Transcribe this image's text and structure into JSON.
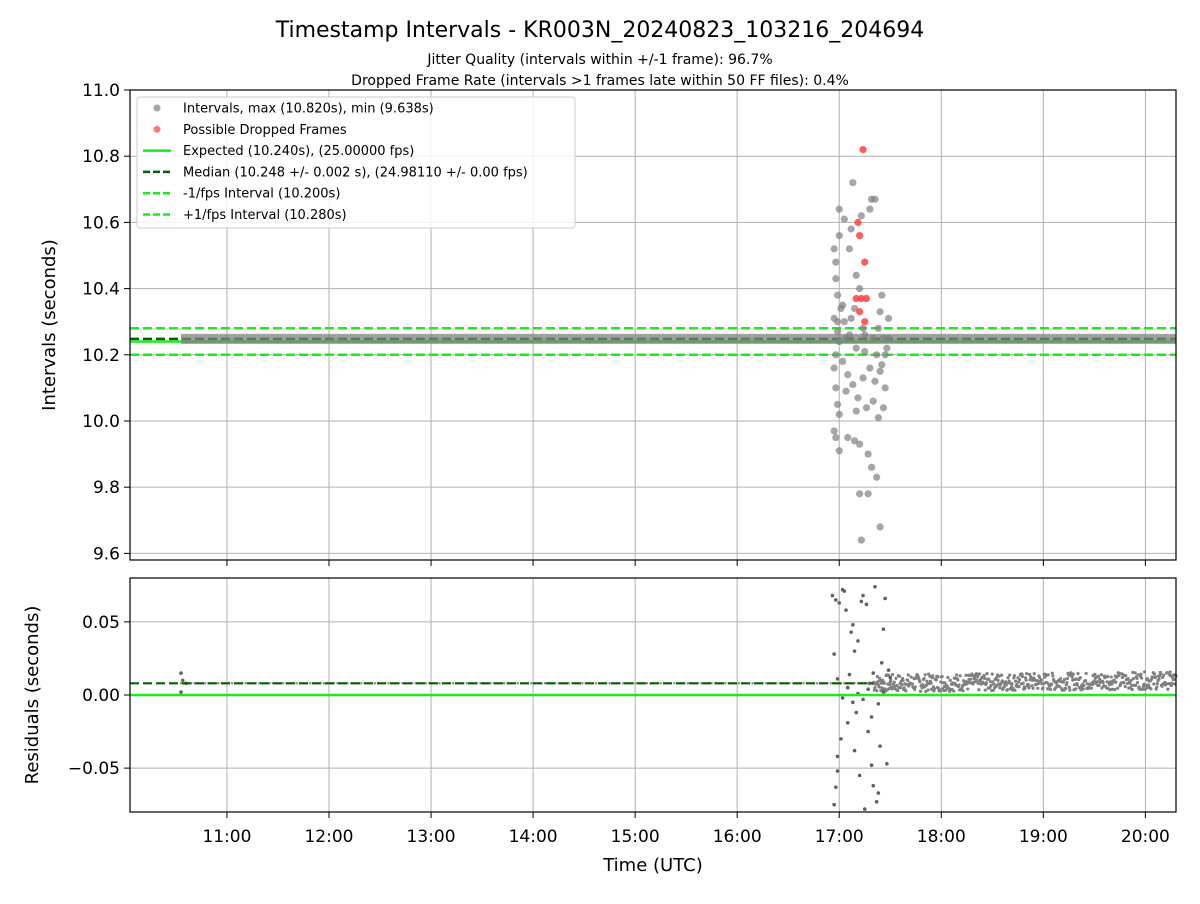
{
  "figure": {
    "title": "Timestamp Intervals - KR003N_20240823_103216_204694",
    "subtitle1": "Jitter Quality (intervals within +/-1 frame): 96.7%",
    "subtitle2": "Dropped Frame Rate (intervals >1 frames late within 50 FF files): 0.4%",
    "xlabel": "Time (UTC)",
    "x_ticks": [
      "11:00",
      "12:00",
      "13:00",
      "14:00",
      "15:00",
      "16:00",
      "17:00",
      "18:00",
      "19:00",
      "20:00"
    ]
  },
  "colors": {
    "intervals": "#808080",
    "dropped": "#ff4040",
    "expected": "#1aee1a",
    "median": "#006400",
    "grid": "#b0b0b0"
  },
  "chart_data": [
    {
      "type": "scatter",
      "ylabel": "Intervals (seconds)",
      "ylim": [
        9.58,
        11.0
      ],
      "y_ticks": [
        {
          "value": 9.6,
          "label": "9.6"
        },
        {
          "value": 9.8,
          "label": "9.8"
        },
        {
          "value": 10.0,
          "label": "10.0"
        },
        {
          "value": 10.2,
          "label": "10.2"
        },
        {
          "value": 10.4,
          "label": "10.4"
        },
        {
          "value": 10.6,
          "label": "10.6"
        },
        {
          "value": 10.8,
          "label": "10.8"
        },
        {
          "value": 11.0,
          "label": "11.0"
        }
      ],
      "x_range_utc": [
        "10:03",
        "20:18"
      ],
      "grid": true,
      "legend_placement": "top-left",
      "legend": [
        {
          "label": "Intervals, max (10.820s), min (9.638s)",
          "kind": "point",
          "color": "#808080"
        },
        {
          "label": "Possible Dropped Frames",
          "kind": "point",
          "color": "#ff4040"
        },
        {
          "label": "Expected (10.240s), (25.00000 fps)",
          "kind": "line",
          "color": "#1aee1a"
        },
        {
          "label": "Median (10.248 +/- 0.002 s), (24.98110 +/- 0.00 fps)",
          "kind": "dashed",
          "color": "#006400"
        },
        {
          "label": "-1/fps Interval (10.200s)",
          "kind": "dashed",
          "color": "#1aee1a"
        },
        {
          "label": "+1/fps Interval (10.280s)",
          "kind": "dashed",
          "color": "#1aee1a"
        }
      ],
      "reference_lines": {
        "expected": 10.24,
        "median": 10.248,
        "minus_1fps": 10.2,
        "plus_1fps": 10.28
      },
      "baseline_band": {
        "x_start": "10:33",
        "x_end": "20:18",
        "y": 10.248
      },
      "series": [
        {
          "name": "Intervals, max (10.820s), min (9.638s)",
          "points": [
            [
              "16:57",
              10.52
            ],
            [
              "16:58",
              10.48
            ],
            [
              "16:59",
              10.3
            ],
            [
              "17:00",
              10.64
            ],
            [
              "17:00",
              10.24
            ],
            [
              "16:58",
              10.2
            ],
            [
              "16:57",
              10.16
            ],
            [
              "16:58",
              10.1
            ],
            [
              "16:59",
              10.05
            ],
            [
              "17:00",
              10.02
            ],
            [
              "16:57",
              9.97
            ],
            [
              "16:58",
              9.95
            ],
            [
              "17:00",
              9.91
            ],
            [
              "17:02",
              10.35
            ],
            [
              "17:03",
              10.61
            ],
            [
              "17:03",
              10.3
            ],
            [
              "17:04",
              10.25
            ],
            [
              "17:05",
              10.14
            ],
            [
              "17:05",
              9.95
            ],
            [
              "17:06",
              10.52
            ],
            [
              "17:07",
              10.58
            ],
            [
              "17:07",
              10.31
            ],
            [
              "17:08",
              10.72
            ],
            [
              "17:08",
              10.11
            ],
            [
              "17:09",
              9.94
            ],
            [
              "17:10",
              10.44
            ],
            [
              "17:10",
              10.22
            ],
            [
              "17:11",
              10.07
            ],
            [
              "17:12",
              9.93
            ],
            [
              "17:12",
              9.78
            ],
            [
              "17:13",
              10.62
            ],
            [
              "17:14",
              10.28
            ],
            [
              "17:15",
              10.21
            ],
            [
              "17:16",
              10.04
            ],
            [
              "17:17",
              9.78
            ],
            [
              "17:17",
              9.9
            ],
            [
              "17:18",
              10.64
            ],
            [
              "17:18",
              10.16
            ],
            [
              "17:19",
              10.67
            ],
            [
              "17:19",
              9.86
            ],
            [
              "17:20",
              10.25
            ],
            [
              "17:21",
              10.67
            ],
            [
              "17:21",
              10.12
            ],
            [
              "17:22",
              10.2
            ],
            [
              "17:22",
              9.83
            ],
            [
              "17:23",
              10.01
            ],
            [
              "17:24",
              10.15
            ],
            [
              "17:24",
              9.68
            ],
            [
              "17:25",
              10.38
            ],
            [
              "17:26",
              10.25
            ],
            [
              "17:26",
              10.04
            ],
            [
              "17:27",
              10.2
            ],
            [
              "17:28",
              10.22
            ],
            [
              "17:29",
              10.31
            ],
            [
              "17:29",
              10.25
            ],
            [
              "17:00",
              10.56
            ],
            [
              "16:58",
              10.43
            ],
            [
              "16:59",
              10.38
            ],
            [
              "17:01",
              10.34
            ],
            [
              "17:13",
              9.64
            ],
            [
              "17:06",
              10.26
            ],
            [
              "17:09",
              10.34
            ],
            [
              "17:15",
              10.26
            ],
            [
              "17:12",
              10.4
            ],
            [
              "17:23",
              10.28
            ],
            [
              "17:24",
              10.33
            ],
            [
              "17:02",
              10.18
            ],
            [
              "17:27",
              10.1
            ],
            [
              "16:59",
              10.27
            ],
            [
              "17:04",
              10.09
            ],
            [
              "17:10",
              10.03
            ],
            [
              "17:14",
              10.13
            ],
            [
              "17:20",
              10.06
            ],
            [
              "17:25",
              10.17
            ],
            [
              "16:57",
              10.31
            ]
          ]
        },
        {
          "name": "Possible Dropped Frames",
          "points": [
            [
              "17:14",
              10.82
            ],
            [
              "17:11",
              10.6
            ],
            [
              "17:12",
              10.56
            ],
            [
              "17:15",
              10.48
            ],
            [
              "17:10",
              10.37
            ],
            [
              "17:13",
              10.37
            ],
            [
              "17:16",
              10.37
            ],
            [
              "17:12",
              10.33
            ],
            [
              "17:15",
              10.3
            ]
          ]
        }
      ]
    },
    {
      "type": "scatter",
      "ylabel": "Residuals (seconds)",
      "ylim": [
        -0.08,
        0.08
      ],
      "y_ticks": [
        {
          "value": -0.05,
          "label": "−0.05"
        },
        {
          "value": 0.0,
          "label": "0.00"
        },
        {
          "value": 0.05,
          "label": "0.05"
        }
      ],
      "x_range_utc": [
        "10:03",
        "20:18"
      ],
      "grid": true,
      "reference_lines": {
        "zero": 0.0,
        "median": 0.008
      },
      "series": [
        {
          "name": "Residuals",
          "points": [
            [
              "10:33",
              0.015
            ],
            [
              "10:33",
              0.002
            ],
            [
              "10:34",
              0.01
            ],
            [
              "10:36",
              0.008
            ],
            [
              "16:56",
              0.068
            ],
            [
              "16:57",
              0.028
            ],
            [
              "16:58",
              0.065
            ],
            [
              "16:59",
              -0.042
            ],
            [
              "16:59",
              -0.052
            ],
            [
              "16:57",
              -0.075
            ],
            [
              "16:58",
              -0.063
            ],
            [
              "17:00",
              0.063
            ],
            [
              "17:01",
              -0.03
            ],
            [
              "17:02",
              0.072
            ],
            [
              "17:03",
              0.071
            ],
            [
              "17:04",
              0.058
            ],
            [
              "17:05",
              -0.019
            ],
            [
              "17:06",
              0.014
            ],
            [
              "17:07",
              0.043
            ],
            [
              "17:08",
              0.048
            ],
            [
              "17:09",
              -0.038
            ],
            [
              "17:10",
              -0.012
            ],
            [
              "17:11",
              0.037
            ],
            [
              "17:12",
              -0.055
            ],
            [
              "17:13",
              0.064
            ],
            [
              "17:14",
              0.068
            ],
            [
              "17:15",
              -0.078
            ],
            [
              "17:16",
              0.062
            ],
            [
              "17:17",
              -0.025
            ],
            [
              "17:18",
              0.008
            ],
            [
              "17:19",
              -0.048
            ],
            [
              "17:20",
              -0.062
            ],
            [
              "17:21",
              0.074
            ],
            [
              "17:22",
              -0.073
            ],
            [
              "17:23",
              -0.067
            ],
            [
              "17:24",
              -0.035
            ],
            [
              "17:25",
              0.022
            ],
            [
              "17:26",
              0.045
            ],
            [
              "17:27",
              0.066
            ],
            [
              "17:28",
              -0.047
            ],
            [
              "17:29",
              0.017
            ],
            [
              "17:30",
              0.012
            ],
            [
              "17:02",
              -0.002
            ],
            [
              "17:05",
              0.005
            ],
            [
              "17:08",
              -0.005
            ],
            [
              "17:11",
              0.001
            ],
            [
              "17:14",
              -0.003
            ],
            [
              "17:17",
              0.004
            ],
            [
              "17:20",
              0.015
            ],
            [
              "17:23",
              -0.006
            ],
            [
              "17:26",
              0.002
            ],
            [
              "16:59",
              0.011
            ],
            [
              "17:09",
              0.03
            ],
            [
              "17:19",
              -0.015
            ]
          ]
        }
      ],
      "band": {
        "x_start": "17:20",
        "x_end": "20:18",
        "y_center": 0.008,
        "spread": 0.006,
        "y_center_end": 0.01
      }
    }
  ]
}
